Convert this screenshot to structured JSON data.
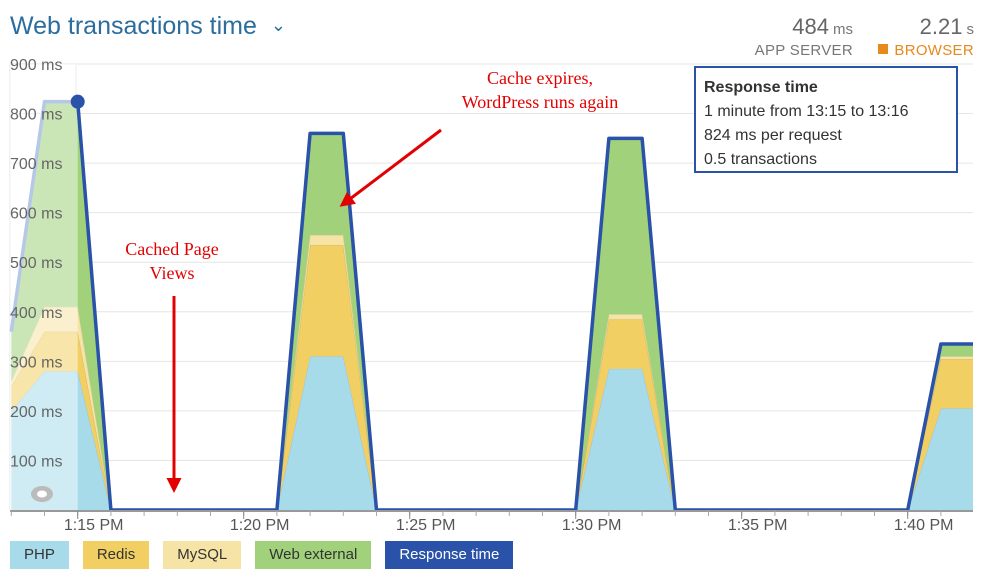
{
  "header": {
    "title": "Web transactions time",
    "app_server": {
      "value": "484",
      "unit": "ms",
      "label": "APP SERVER"
    },
    "browser": {
      "value": "2.21",
      "unit": "s",
      "label": "BROWSER"
    }
  },
  "tooltip": {
    "title": "Response time",
    "lines": [
      "1 minute from 13:15 to 13:16",
      "824 ms per request",
      "0.5 transactions"
    ]
  },
  "colors": {
    "php": "#a8dbea",
    "redis": "#f2cf63",
    "mysql": "#f6e3a6",
    "web_external": "#a1d17a",
    "response_time": "#2a52a8"
  },
  "chart_data": {
    "type": "area",
    "stacked": true,
    "x": [
      "13:13",
      "13:14",
      "13:15",
      "13:16",
      "13:17",
      "13:18",
      "13:19",
      "13:20",
      "13:21",
      "13:22",
      "13:23",
      "13:24",
      "13:25",
      "13:26",
      "13:27",
      "13:28",
      "13:29",
      "13:30",
      "13:31",
      "13:32",
      "13:33",
      "13:34",
      "13:35",
      "13:36",
      "13:37",
      "13:38",
      "13:39",
      "13:40",
      "13:41",
      "13:42"
    ],
    "x_ticks": [
      "1:15 PM",
      "1:20 PM",
      "1:25 PM",
      "1:30 PM",
      "1:35 PM",
      "1:40 PM"
    ],
    "x_tick_values": [
      "13:15",
      "13:20",
      "13:25",
      "13:30",
      "13:35",
      "13:40"
    ],
    "y_ticks": [
      "900 ms",
      "800 ms",
      "700 ms",
      "600 ms",
      "500 ms",
      "400 ms",
      "300 ms",
      "200 ms",
      "100 ms"
    ],
    "y_tick_values": [
      900,
      800,
      700,
      600,
      500,
      400,
      300,
      200,
      100
    ],
    "ylim": [
      0,
      900
    ],
    "grid": true,
    "series": [
      {
        "name": "PHP",
        "values": [
          200,
          280,
          280,
          0,
          0,
          0,
          0,
          0,
          0,
          310,
          310,
          0,
          0,
          0,
          0,
          0,
          0,
          0,
          285,
          285,
          0,
          0,
          0,
          0,
          0,
          0,
          0,
          0,
          205,
          205
        ]
      },
      {
        "name": "Redis",
        "values": [
          50,
          80,
          80,
          0,
          0,
          0,
          0,
          0,
          0,
          225,
          225,
          0,
          0,
          0,
          0,
          0,
          0,
          0,
          100,
          100,
          0,
          0,
          0,
          0,
          0,
          0,
          0,
          0,
          100,
          100
        ]
      },
      {
        "name": "MySQL",
        "values": [
          10,
          50,
          50,
          0,
          0,
          0,
          0,
          0,
          0,
          20,
          20,
          0,
          0,
          0,
          0,
          0,
          0,
          0,
          10,
          10,
          0,
          0,
          0,
          0,
          0,
          0,
          0,
          0,
          5,
          5
        ]
      },
      {
        "name": "Web external",
        "values": [
          100,
          414,
          414,
          0,
          0,
          0,
          0,
          0,
          0,
          205,
          205,
          0,
          0,
          0,
          0,
          0,
          0,
          0,
          355,
          355,
          0,
          0,
          0,
          0,
          0,
          0,
          0,
          0,
          25,
          25
        ]
      }
    ],
    "response_time": {
      "name": "Response time",
      "values": [
        360,
        824,
        824,
        0,
        0,
        0,
        0,
        0,
        0,
        760,
        760,
        0,
        0,
        0,
        0,
        0,
        0,
        0,
        750,
        750,
        0,
        0,
        0,
        0,
        0,
        0,
        0,
        0,
        335,
        335
      ]
    },
    "highlight_point": {
      "x": "13:15",
      "y": 824
    },
    "annotations": [
      {
        "text_lines": [
          "Cache expires,",
          "WordPress runs again"
        ]
      },
      {
        "text_lines": [
          "Cached Page",
          "Views"
        ]
      }
    ],
    "legend_position": "bottom-left"
  },
  "legend": [
    "PHP",
    "Redis",
    "MySQL",
    "Web external",
    "Response time"
  ]
}
